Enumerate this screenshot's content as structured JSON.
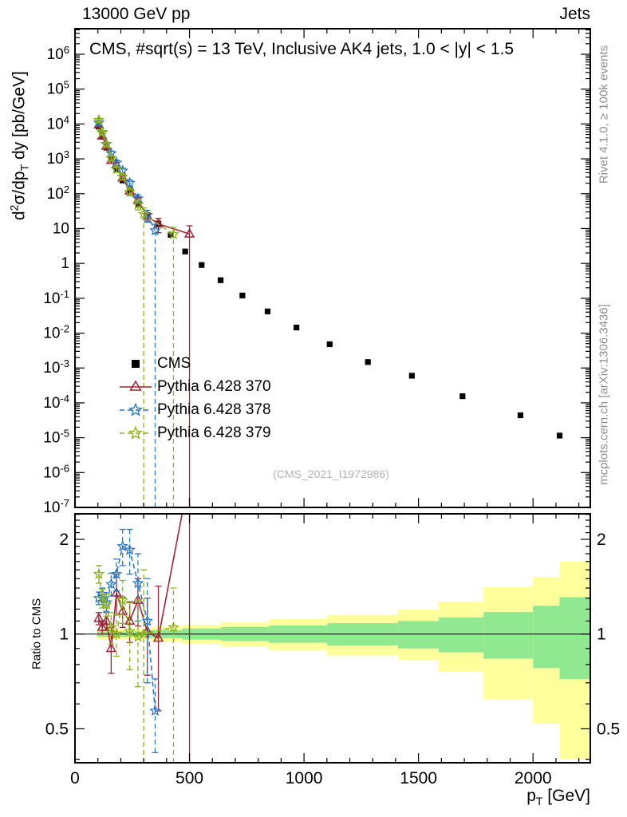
{
  "header": {
    "left": "13000 GeV pp",
    "right": "Jets"
  },
  "plot_title": "CMS, #sqrt(s) = 13 TeV, Inclusive AK4 jets, 1.0 < |y| < 1.5",
  "watermark": "(CMS_2021_I1972986)",
  "side_labels": {
    "top": "Rivet 4.1.0, ≥ 100k events",
    "bottom": "mcplots.cern.ch [arXiv:1306.3436]"
  },
  "axis_labels": {
    "main_y": {
      "pre": "d",
      "sup": "2",
      "mid": "σ/dp",
      "sub": "T",
      "post": " dy [pb/GeV]"
    },
    "ratio_y": "Ratio to CMS",
    "x": {
      "pre": "p",
      "sub": "T",
      "post": " [GeV]"
    }
  },
  "chart_data": [
    {
      "id": "differential-cross-section",
      "type": "scatter",
      "title": "CMS, #sqrt(s) = 13 TeV, Inclusive AK4 jets, 1.0 < |y| < 1.5",
      "xlabel": "p_T [GeV]",
      "ylabel": "d^2σ/dp_T dy [pb/GeV]",
      "x_range": [
        0,
        2250
      ],
      "y_range_log": [
        1e-07,
        5400000
      ],
      "x_ticks": [
        0,
        500,
        1000,
        1500,
        2000
      ],
      "grid": false,
      "legend_position": "inside-left-lower",
      "series": [
        {
          "name": "CMS",
          "marker": "square",
          "color": "#000000",
          "line": "none",
          "points": [
            [
              104,
              8400
            ],
            [
              119,
              4300
            ],
            [
              137,
              2100
            ],
            [
              158,
              1000
            ],
            [
              181,
              500
            ],
            [
              208,
              240
            ],
            [
              239,
              110
            ],
            [
              275,
              50
            ],
            [
              316,
              22
            ],
            [
              364,
              14
            ],
            [
              418,
              6.6
            ],
            [
              481,
              2.2
            ],
            [
              553,
              0.9
            ],
            [
              636,
              0.33
            ],
            [
              731,
              0.12
            ],
            [
              841,
              0.042
            ],
            [
              967,
              0.0145
            ],
            [
              1112,
              0.0048
            ],
            [
              1279,
              0.00148
            ],
            [
              1471,
              0.0006
            ],
            [
              1692,
              0.000155
            ],
            [
              1945,
              4.4e-05
            ],
            [
              2116,
              1.15e-05
            ]
          ]
        },
        {
          "name": "Pythia 6.428 370",
          "marker": "triangle-open",
          "color": "#a32233",
          "line": "solid",
          "points": [
            [
              104,
              9400,
              900,
              900
            ],
            [
              119,
              4500,
              450,
              450
            ],
            [
              137,
              2300,
              250,
              250
            ],
            [
              158,
              900,
              140,
              140
            ],
            [
              181,
              675,
              110,
              110
            ],
            [
              208,
              283,
              45,
              45
            ],
            [
              239,
              121,
              22,
              22
            ],
            [
              275,
              64,
              14,
              14
            ],
            [
              316,
              22.4,
              6,
              6
            ],
            [
              364,
              13.6,
              6,
              6
            ],
            [
              500,
              7.0,
              7.0,
              5.0
            ]
          ]
        },
        {
          "name": "Pythia 6.428 378",
          "marker": "star",
          "color": "#2878c8",
          "line": "dash",
          "points": [
            [
              104,
              10900,
              1000,
              1000
            ],
            [
              119,
              5760,
              560,
              560
            ],
            [
              137,
              2650,
              280,
              280
            ],
            [
              158,
              1440,
              200,
              200
            ],
            [
              181,
              775,
              130,
              130
            ],
            [
              208,
              456,
              80,
              80
            ],
            [
              239,
              204,
              40,
              40
            ],
            [
              275,
              72,
              20,
              20
            ],
            [
              316,
              24.2,
              9,
              9
            ],
            [
              350,
              8.8,
              8.8,
              4.5
            ]
          ]
        },
        {
          "name": "Pythia 6.428 379",
          "marker": "star",
          "color": "#8cb41e",
          "line": "dash",
          "points": [
            [
              104,
              13000,
              1200,
              1200
            ],
            [
              119,
              5600,
              560,
              560
            ],
            [
              137,
              2600,
              280,
              280
            ],
            [
              158,
              1050,
              160,
              160
            ],
            [
              181,
              500,
              90,
              90
            ],
            [
              208,
              307,
              55,
              55
            ],
            [
              239,
              112,
              25,
              25
            ],
            [
              275,
              49,
              15,
              15
            ],
            [
              300,
              26,
              26,
              13
            ],
            [
              430,
              6.8,
              6.8,
              4
            ]
          ]
        }
      ]
    },
    {
      "id": "ratio-to-cms",
      "type": "scatter",
      "ylabel": "Ratio to CMS",
      "x_range": [
        0,
        2250
      ],
      "y_range_log": [
        0.39,
        2.41
      ],
      "y_ticks": [
        2,
        1,
        0.5
      ],
      "reference_line": 1,
      "bands": [
        {
          "name": "total-uncertainty",
          "color": "#ffff9c",
          "bins": [
            [
              97,
              330,
              0.962,
              1.038
            ],
            [
              330,
              468,
              0.945,
              1.055
            ],
            [
              468,
              638,
              0.93,
              1.07
            ],
            [
              638,
              846,
              0.912,
              1.088
            ],
            [
              846,
              1101,
              0.888,
              1.115
            ],
            [
              1101,
              1410,
              0.855,
              1.15
            ],
            [
              1410,
              1588,
              0.825,
              1.195
            ],
            [
              1588,
              1784,
              0.76,
              1.265
            ],
            [
              1784,
              2000,
              0.62,
              1.41
            ],
            [
              2000,
              2116,
              0.52,
              1.52
            ],
            [
              2116,
              2250,
              0.4,
              1.7
            ]
          ]
        },
        {
          "name": "statistical-uncertainty",
          "color": "#90e890",
          "bins": [
            [
              97,
              330,
              0.98,
              1.02
            ],
            [
              330,
              468,
              0.97,
              1.03
            ],
            [
              468,
              638,
              0.96,
              1.042
            ],
            [
              638,
              846,
              0.95,
              1.052
            ],
            [
              846,
              1101,
              0.938,
              1.065
            ],
            [
              1101,
              1410,
              0.92,
              1.082
            ],
            [
              1410,
              1588,
              0.9,
              1.1
            ],
            [
              1588,
              1784,
              0.875,
              1.13
            ],
            [
              1784,
              2000,
              0.835,
              1.175
            ],
            [
              2000,
              2116,
              0.78,
              1.23
            ],
            [
              2116,
              2250,
              0.72,
              1.31
            ]
          ]
        }
      ],
      "series": [
        {
          "name": "Pythia 6.428 370",
          "marker": "triangle-open",
          "color": "#a32233",
          "line": "solid",
          "points": [
            [
              104,
              1.12,
              0.05,
              0.05
            ],
            [
              119,
              1.05,
              0.05,
              0.05
            ],
            [
              137,
              1.1,
              0.07,
              0.07
            ],
            [
              158,
              0.9,
              0.15,
              0.15
            ],
            [
              181,
              1.35,
              0.2,
              0.2
            ],
            [
              208,
              1.18,
              0.13,
              0.13
            ],
            [
              239,
              1.1,
              0.16,
              0.16
            ],
            [
              275,
              1.28,
              0.22,
              0.22
            ],
            [
              316,
              1.02,
              0.28,
              0.28
            ],
            [
              364,
              0.97,
              0.4,
              0.45
            ],
            [
              500,
              3.2,
              3.2,
              1.5
            ]
          ]
        },
        {
          "name": "Pythia 6.428 378",
          "marker": "star",
          "color": "#2878c8",
          "line": "dash",
          "points": [
            [
              104,
              1.3,
              0.06,
              0.06
            ],
            [
              119,
              1.34,
              0.06,
              0.06
            ],
            [
              137,
              1.26,
              0.08,
              0.08
            ],
            [
              158,
              1.44,
              0.12,
              0.12
            ],
            [
              181,
              1.55,
              0.18,
              0.18
            ],
            [
              208,
              1.9,
              0.25,
              0.25
            ],
            [
              239,
              1.85,
              0.3,
              0.3
            ],
            [
              275,
              1.45,
              0.35,
              0.35
            ],
            [
              316,
              1.1,
              0.4,
              0.4
            ],
            [
              350,
              0.57,
              0.15,
              0.15
            ]
          ]
        },
        {
          "name": "Pythia 6.428 379",
          "marker": "star",
          "color": "#8cb41e",
          "line": "dash",
          "points": [
            [
              104,
              1.55,
              0.1,
              0.1
            ],
            [
              119,
              1.3,
              0.09,
              0.09
            ],
            [
              137,
              1.24,
              0.1,
              0.1
            ],
            [
              158,
              1.05,
              0.12,
              0.12
            ],
            [
              181,
              1.0,
              0.15,
              0.15
            ],
            [
              208,
              1.28,
              0.2,
              0.2
            ],
            [
              239,
              1.02,
              0.25,
              0.25
            ],
            [
              275,
              0.98,
              0.3,
              0.3
            ],
            [
              300,
              1.0,
              1.0,
              0.6
            ],
            [
              430,
              1.05,
              1.05,
              0.35
            ]
          ]
        }
      ]
    }
  ]
}
